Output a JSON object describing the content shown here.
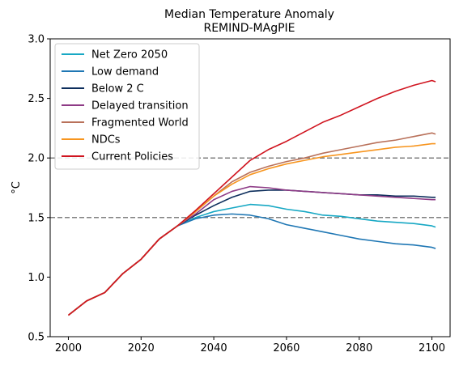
{
  "chart_data": {
    "type": "line",
    "title": "Median Temperature Anomaly",
    "subtitle": "REMIND-MAgPIE",
    "xlabel": "",
    "ylabel": "°C",
    "xlim": [
      1995,
      2105
    ],
    "ylim": [
      0.5,
      3.0
    ],
    "xticks": [
      "2000",
      "2020",
      "2040",
      "2060",
      "2080",
      "2100"
    ],
    "yticks": [
      "0.5",
      "1.0",
      "1.5",
      "2.0",
      "2.5",
      "3.0"
    ],
    "grid": false,
    "legend_position": "top-left",
    "reference_lines": [
      {
        "y": 2.0,
        "color": "#808080",
        "style": "dashed"
      },
      {
        "y": 1.5,
        "color": "#808080",
        "style": "dashed"
      }
    ],
    "series": [
      {
        "name": "Net Zero 2050",
        "color": "#17a8c4",
        "x": [
          2000,
          2005,
          2010,
          2015,
          2020,
          2025,
          2030,
          2035,
          2040,
          2045,
          2050,
          2055,
          2060,
          2065,
          2070,
          2075,
          2080,
          2085,
          2090,
          2095,
          2100,
          2101
        ],
        "y": [
          0.68,
          0.8,
          0.87,
          1.03,
          1.15,
          1.32,
          1.43,
          1.5,
          1.55,
          1.58,
          1.61,
          1.6,
          1.57,
          1.55,
          1.52,
          1.51,
          1.49,
          1.47,
          1.46,
          1.45,
          1.43,
          1.42
        ]
      },
      {
        "name": "Low demand",
        "color": "#1f77b4",
        "x": [
          2000,
          2005,
          2010,
          2015,
          2020,
          2025,
          2030,
          2035,
          2040,
          2045,
          2050,
          2055,
          2060,
          2065,
          2070,
          2075,
          2080,
          2085,
          2090,
          2095,
          2100,
          2101
        ],
        "y": [
          0.68,
          0.8,
          0.87,
          1.03,
          1.15,
          1.32,
          1.43,
          1.49,
          1.52,
          1.53,
          1.52,
          1.49,
          1.44,
          1.41,
          1.38,
          1.35,
          1.32,
          1.3,
          1.28,
          1.27,
          1.25,
          1.24
        ]
      },
      {
        "name": "Below 2 C",
        "color": "#0d2e5c",
        "x": [
          2000,
          2005,
          2010,
          2015,
          2020,
          2025,
          2030,
          2035,
          2040,
          2045,
          2050,
          2055,
          2060,
          2065,
          2070,
          2075,
          2080,
          2085,
          2090,
          2095,
          2100,
          2101
        ],
        "y": [
          0.68,
          0.8,
          0.87,
          1.03,
          1.15,
          1.32,
          1.43,
          1.52,
          1.6,
          1.67,
          1.72,
          1.73,
          1.73,
          1.72,
          1.71,
          1.7,
          1.69,
          1.69,
          1.68,
          1.68,
          1.67,
          1.67
        ]
      },
      {
        "name": "Delayed transition",
        "color": "#8e3b86",
        "x": [
          2000,
          2005,
          2010,
          2015,
          2020,
          2025,
          2030,
          2035,
          2040,
          2045,
          2050,
          2055,
          2060,
          2065,
          2070,
          2075,
          2080,
          2085,
          2090,
          2095,
          2100,
          2101
        ],
        "y": [
          0.68,
          0.8,
          0.87,
          1.03,
          1.15,
          1.32,
          1.43,
          1.53,
          1.65,
          1.72,
          1.76,
          1.75,
          1.73,
          1.72,
          1.71,
          1.7,
          1.69,
          1.68,
          1.67,
          1.66,
          1.65,
          1.65
        ]
      },
      {
        "name": "Fragmented World",
        "color": "#b9715a",
        "x": [
          2000,
          2005,
          2010,
          2015,
          2020,
          2025,
          2030,
          2035,
          2040,
          2045,
          2050,
          2055,
          2060,
          2065,
          2070,
          2075,
          2080,
          2085,
          2090,
          2095,
          2100,
          2101
        ],
        "y": [
          0.68,
          0.8,
          0.87,
          1.03,
          1.15,
          1.32,
          1.43,
          1.55,
          1.68,
          1.8,
          1.88,
          1.93,
          1.97,
          2.0,
          2.04,
          2.07,
          2.1,
          2.13,
          2.15,
          2.18,
          2.21,
          2.2
        ]
      },
      {
        "name": "NDCs",
        "color": "#f7951f",
        "x": [
          2000,
          2005,
          2010,
          2015,
          2020,
          2025,
          2030,
          2035,
          2040,
          2045,
          2050,
          2055,
          2060,
          2065,
          2070,
          2075,
          2080,
          2085,
          2090,
          2095,
          2100,
          2101
        ],
        "y": [
          0.68,
          0.8,
          0.87,
          1.03,
          1.15,
          1.32,
          1.43,
          1.55,
          1.68,
          1.78,
          1.86,
          1.91,
          1.95,
          1.98,
          2.01,
          2.03,
          2.05,
          2.07,
          2.09,
          2.1,
          2.12,
          2.12
        ]
      },
      {
        "name": "Current Policies",
        "color": "#d0141f",
        "x": [
          2000,
          2005,
          2010,
          2015,
          2020,
          2025,
          2030,
          2035,
          2040,
          2045,
          2050,
          2055,
          2060,
          2065,
          2070,
          2075,
          2080,
          2085,
          2090,
          2095,
          2100,
          2101
        ],
        "y": [
          0.68,
          0.8,
          0.87,
          1.03,
          1.15,
          1.32,
          1.43,
          1.56,
          1.7,
          1.84,
          1.98,
          2.07,
          2.14,
          2.22,
          2.3,
          2.36,
          2.43,
          2.5,
          2.56,
          2.61,
          2.65,
          2.64
        ]
      }
    ]
  }
}
